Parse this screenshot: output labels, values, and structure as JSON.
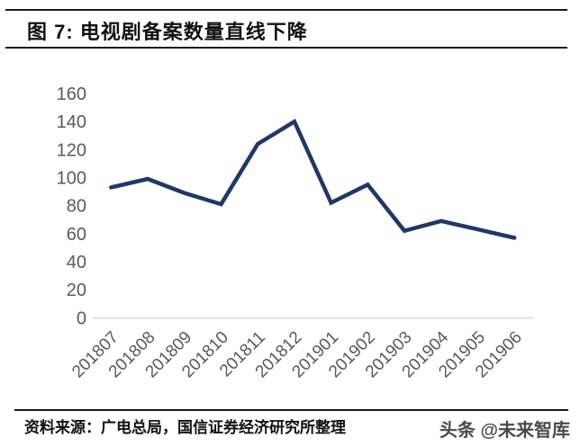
{
  "header": {
    "title": "图 7:  电视剧备案数量直线下降"
  },
  "footer": {
    "source": "资料来源：广电总局，国信证券经济研究所整理",
    "watermark": "头条 @未来智库"
  },
  "colors": {
    "line": "#1f3864",
    "axis_label": "#595959",
    "axis_line": "#d9d9d9",
    "rule": "#1a1a1a"
  },
  "chart_data": {
    "type": "line",
    "title": "图 7:  电视剧备案数量直线下降",
    "categories": [
      "201807",
      "201808",
      "201809",
      "201810",
      "201811",
      "201812",
      "201901",
      "201902",
      "201903",
      "201904",
      "201905",
      "201906"
    ],
    "values": [
      93,
      99,
      89,
      81,
      124,
      140,
      82,
      95,
      62,
      69,
      63,
      57
    ],
    "xlabel": "",
    "ylabel": "",
    "ylim": [
      0,
      160
    ],
    "ytick_step": 20,
    "grid": false,
    "legend": "none",
    "x_label_rotation_deg": -45,
    "line_color": "#1f3864",
    "axis_label_color": "#595959",
    "axis_line_color": "#d9d9d9"
  }
}
